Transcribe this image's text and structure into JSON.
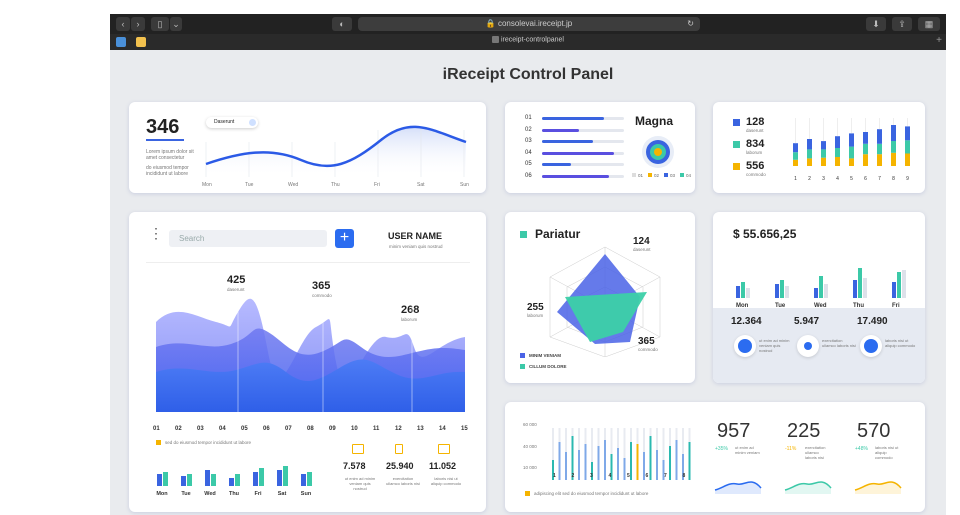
{
  "browser": {
    "url": "consolevai.ireceipt.jp",
    "tab_title": "ireceipt-controlpanel",
    "back": "‹",
    "forward": "›",
    "sidebar": "▯",
    "dropdown": "⌄",
    "shield": "◐",
    "reload": "↻",
    "download": "⬇",
    "share": "⇪",
    "grid": "▦",
    "newtab": "+"
  },
  "page_title": "iReceipt Control Panel",
  "card1": {
    "big": "346",
    "pill": "Daserunt",
    "text1": "Lorem ipsum dolor sit amet consectetur",
    "text2": "do eiusmod tempor incididunt ut labore",
    "days": [
      "Mon",
      "Tue",
      "Wed",
      "Thu",
      "Fri",
      "Sat",
      "Sun"
    ]
  },
  "card2": {
    "title": "Magna",
    "rows": [
      "01",
      "02",
      "03",
      "04",
      "05",
      "06"
    ],
    "fills": [
      0.75,
      0.45,
      0.62,
      0.88,
      0.35,
      0.82
    ],
    "legend": [
      "01",
      "02",
      "03",
      "04"
    ]
  },
  "card3": {
    "items": [
      {
        "value": "128",
        "label": "daserunt",
        "color": "#3a64e0"
      },
      {
        "value": "834",
        "label": "laborum",
        "color": "#3cc9a8"
      },
      {
        "value": "556",
        "label": "commodo",
        "color": "#f5b400"
      }
    ],
    "x": [
      "1",
      "2",
      "3",
      "4",
      "5",
      "6",
      "7",
      "8",
      "9"
    ]
  },
  "card4": {
    "search_placeholder": "Search",
    "add": "+",
    "user_name": "USER NAME",
    "user_sub": "minim veniam quis nostrud",
    "peaks": [
      {
        "value": "425",
        "label": "daserunt"
      },
      {
        "value": "365",
        "label": "commodo"
      },
      {
        "value": "268",
        "label": "laborum"
      }
    ],
    "x": [
      "01",
      "02",
      "03",
      "04",
      "05",
      "06",
      "07",
      "08",
      "09",
      "10",
      "11",
      "12",
      "13",
      "14",
      "15"
    ],
    "legend": "sed do eiusmod tempor incididunt ut labore",
    "days": [
      "Mon",
      "Tue",
      "Wed",
      "Thu",
      "Fri",
      "Sat",
      "Sun"
    ],
    "stats": [
      {
        "value": "7.578",
        "label": "ut enim ad minim veniam quis nostrud"
      },
      {
        "value": "25.940",
        "label": "exercitation ullamco laboris nisi"
      },
      {
        "value": "11.052",
        "label": "laboris nisi ut aliquip commodo"
      }
    ]
  },
  "card5": {
    "title": "Pariatur",
    "v1": "124",
    "l1": "daserunt",
    "v2": "255",
    "l2": "laborum",
    "v3": "365",
    "l3": "commodo",
    "legend": [
      "MINIM VENIAM",
      "CILLUM DOLORE"
    ]
  },
  "card6": {
    "amount": "$ 55.656,25",
    "days": [
      "Mon",
      "Tue",
      "Wed",
      "Thu",
      "Fri"
    ],
    "stats": [
      {
        "value": "12.364",
        "label": "ut enim ad minim veniam quis nostrud"
      },
      {
        "value": "5.947",
        "label": "exercitation ullamco laboris nisi"
      },
      {
        "value": "17.490",
        "label": "laboris nisi ut aliquip commodo"
      }
    ]
  },
  "card7": {
    "y": [
      "60 000",
      "40 000",
      "10 000"
    ],
    "x": [
      "1",
      "2",
      "3",
      "4",
      "5",
      "6",
      "7",
      "8"
    ],
    "legend": "adipiscing elit sed do eiusmod tempor incididunt ut labore",
    "stats": [
      {
        "value": "957",
        "pct": "+35%",
        "label": "ut enim ad minim veniam"
      },
      {
        "value": "225",
        "pct": "-11%",
        "label": "exercitation ullamco laboris nisi"
      },
      {
        "value": "570",
        "pct": "+48%",
        "label": "laboris nisi ut aliquip commodo"
      }
    ]
  }
}
